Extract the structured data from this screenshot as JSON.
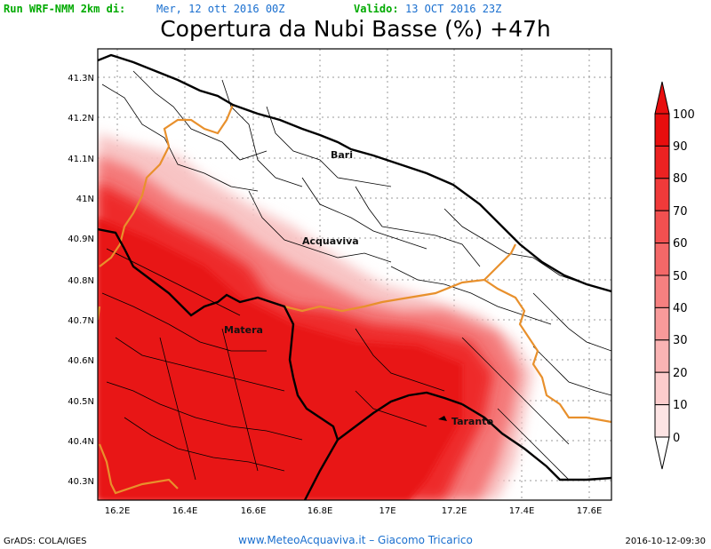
{
  "header": {
    "run_label": "Run WRF-NMM 2km di:",
    "run_date": "Mer, 12 ott 2016 00Z",
    "valid_label": "Valido:",
    "valid_date": "13 OCT 2016 23Z"
  },
  "title": "Copertura da Nubi Basse (%) +47h",
  "map": {
    "lat_labels": [
      "41.3N",
      "41.2N",
      "41.1N",
      "41N",
      "40.9N",
      "40.8N",
      "40.7N",
      "40.6N",
      "40.5N",
      "40.4N",
      "40.3N"
    ],
    "lon_labels": [
      "16.2E",
      "16.4E",
      "16.6E",
      "16.8E",
      "17E",
      "17.2E",
      "17.4E",
      "17.6E"
    ],
    "cities": [
      "Bari",
      "Acquaviva",
      "Matera",
      "Taranto"
    ],
    "colors": {
      "cloud": "#ee2222",
      "region_border": "#e8902c",
      "coast": "#000000"
    }
  },
  "colorbar": {
    "labels": [
      "100",
      "90",
      "80",
      "70",
      "60",
      "50",
      "40",
      "30",
      "20",
      "10",
      "0"
    ],
    "colors": [
      "#e80e0e",
      "#ec2222",
      "#f03a3a",
      "#f25050",
      "#f46868",
      "#f68080",
      "#f89a9a",
      "#fab4b4",
      "#fccccc",
      "#fde4e4"
    ]
  },
  "footer": {
    "grads": "GrADS: COLA/IGES",
    "site": "www.MeteoAcquaviva.it  –  Giacomo Tricarico",
    "timestamp": "2016-10-12-09:30"
  }
}
